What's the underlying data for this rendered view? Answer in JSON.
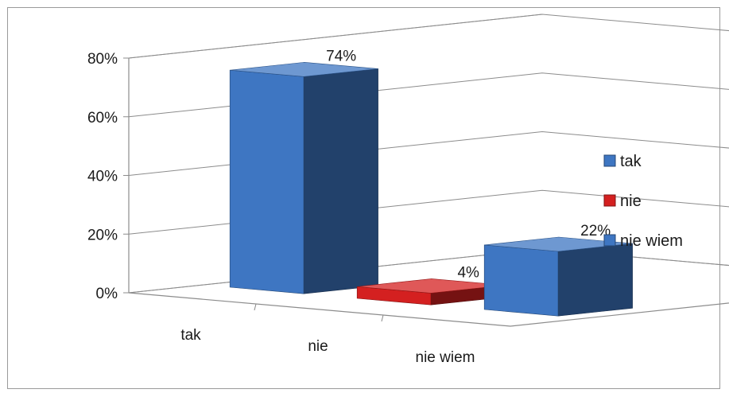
{
  "chart_data": {
    "type": "bar",
    "categories": [
      "tak",
      "nie",
      "nie wiem"
    ],
    "values": [
      74,
      4,
      22
    ],
    "data_labels": [
      "74%",
      "4%",
      "22%"
    ],
    "colors": [
      "#3e76c2",
      "#d42020",
      "#3e76c2"
    ],
    "ylim": [
      0,
      80
    ],
    "yticks": [
      {
        "value": 0,
        "label": "0%"
      },
      {
        "value": 20,
        "label": "20%"
      },
      {
        "value": 40,
        "label": "40%"
      },
      {
        "value": 60,
        "label": "60%"
      },
      {
        "value": 80,
        "label": "80%"
      }
    ],
    "legend": {
      "position": "right",
      "entries": [
        {
          "label": "tak",
          "color": "#3e76c2"
        },
        {
          "label": "nie",
          "color": "#d42020"
        },
        {
          "label": "nie wiem",
          "color": "#3e76c2"
        }
      ]
    },
    "title": "",
    "xlabel": "",
    "ylabel": "",
    "grid": true,
    "style": "3d-column"
  }
}
